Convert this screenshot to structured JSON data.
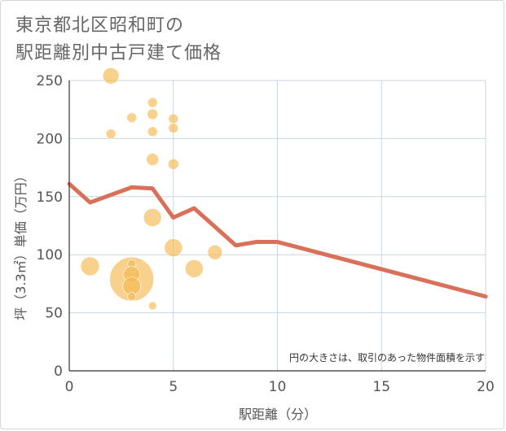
{
  "header": {
    "title_line1": "東京都北区昭和町の",
    "title_line2": "駅距離別中古戸建て価格"
  },
  "chart_data": {
    "type": "scatter",
    "xlabel": "駅距離（分）",
    "ylabel": "坪（3.3㎡）単価（万円）",
    "note": "円の大きさは、取引のあった物件面積を示す",
    "xlim": [
      0,
      20
    ],
    "ylim": [
      0,
      250
    ],
    "x_ticks": [
      "0",
      "5",
      "10",
      "15",
      "20"
    ],
    "y_ticks": [
      "0",
      "50",
      "100",
      "150",
      "200",
      "250"
    ],
    "x_tick_values": [
      0,
      5,
      10,
      15,
      20
    ],
    "y_tick_values": [
      0,
      50,
      100,
      150,
      200,
      250
    ],
    "grid": true,
    "colors": {
      "bubble": "#f5b94e",
      "line": "#d9705a",
      "grid": "#c9d6e0"
    },
    "bubbles": [
      {
        "x": 2,
        "y": 254,
        "size": 10
      },
      {
        "x": 2,
        "y": 204,
        "size": 6
      },
      {
        "x": 3,
        "y": 218,
        "size": 6
      },
      {
        "x": 4,
        "y": 231,
        "size": 6
      },
      {
        "x": 4,
        "y": 221,
        "size": 6.5
      },
      {
        "x": 4,
        "y": 206,
        "size": 6
      },
      {
        "x": 4,
        "y": 182,
        "size": 7.5
      },
      {
        "x": 5,
        "y": 217,
        "size": 6
      },
      {
        "x": 5,
        "y": 209,
        "size": 6
      },
      {
        "x": 5,
        "y": 178,
        "size": 6.5
      },
      {
        "x": 4,
        "y": 132,
        "size": 11
      },
      {
        "x": 5,
        "y": 106,
        "size": 11
      },
      {
        "x": 7,
        "y": 102,
        "size": 9
      },
      {
        "x": 1,
        "y": 90,
        "size": 11.5
      },
      {
        "x": 6,
        "y": 88,
        "size": 11
      },
      {
        "x": 3,
        "y": 79,
        "size": 27
      },
      {
        "x": 3,
        "y": 92,
        "size": 5
      },
      {
        "x": 3,
        "y": 83,
        "size": 10
      },
      {
        "x": 3,
        "y": 73,
        "size": 11
      },
      {
        "x": 3,
        "y": 64,
        "size": 5
      },
      {
        "x": 4,
        "y": 56,
        "size": 5
      }
    ],
    "trend_line": {
      "x": [
        0,
        1,
        3,
        4,
        5,
        6,
        8,
        9,
        10,
        20
      ],
      "y": [
        161,
        145,
        158,
        157,
        132,
        140,
        108,
        111,
        111,
        64
      ]
    }
  }
}
